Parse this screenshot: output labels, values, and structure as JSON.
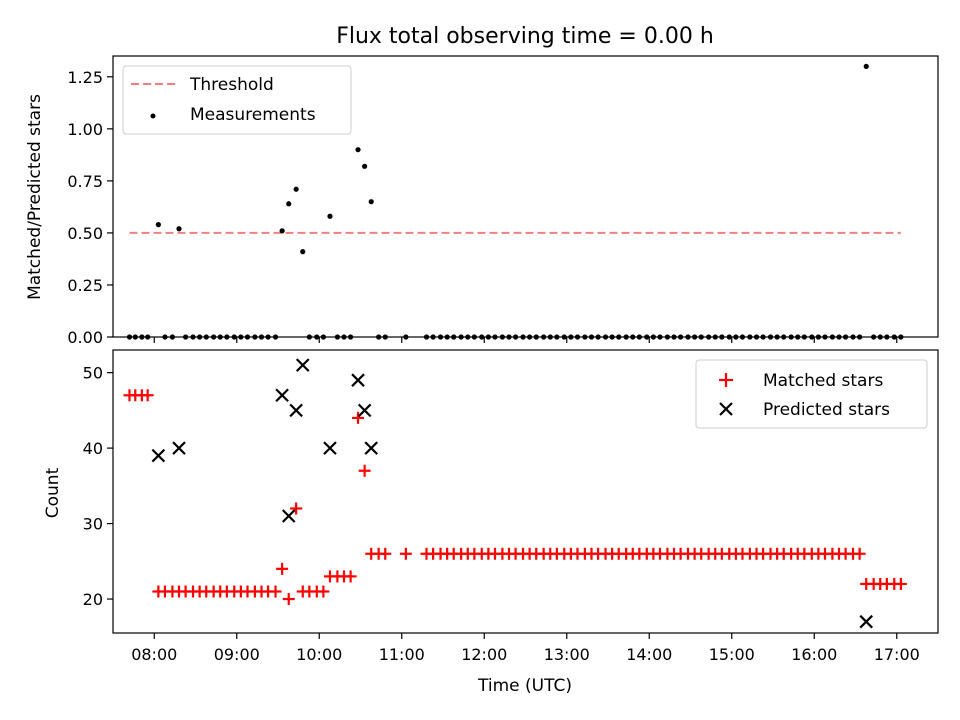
{
  "chart_data": [
    {
      "type": "scatter",
      "title": "Flux total observing time = 0.00 h",
      "xlabel": "",
      "ylabel": "Matched/Predicted stars",
      "xlim_hours": [
        7.5,
        17.5
      ],
      "ylim": [
        0,
        1.35
      ],
      "yticks": [
        "0.00",
        "0.25",
        "0.50",
        "0.75",
        "1.00",
        "1.25"
      ],
      "ytick_values": [
        0,
        0.25,
        0.5,
        0.75,
        1.0,
        1.25
      ],
      "threshold": {
        "label": "Threshold",
        "value": 0.5,
        "x_start": 7.7,
        "x_end": 17.05,
        "color": "#f08080"
      },
      "legend": [
        "Threshold",
        "Measurements"
      ],
      "legend_position": "top-left",
      "series": [
        {
          "name": "Measurements",
          "color": "#000000",
          "points": [
            [
              7.7,
              0
            ],
            [
              7.77,
              0
            ],
            [
              7.85,
              0
            ],
            [
              7.92,
              0
            ],
            [
              8.05,
              0.54
            ],
            [
              8.13,
              0
            ],
            [
              8.22,
              0
            ],
            [
              8.3,
              0.52
            ],
            [
              8.38,
              0
            ],
            [
              8.47,
              0
            ],
            [
              8.55,
              0
            ],
            [
              8.63,
              0
            ],
            [
              8.72,
              0
            ],
            [
              8.8,
              0
            ],
            [
              8.88,
              0
            ],
            [
              8.97,
              0
            ],
            [
              9.05,
              0
            ],
            [
              9.13,
              0
            ],
            [
              9.22,
              0
            ],
            [
              9.3,
              0
            ],
            [
              9.38,
              0
            ],
            [
              9.47,
              0
            ],
            [
              9.55,
              0.51
            ],
            [
              9.63,
              0.64
            ],
            [
              9.72,
              0.71
            ],
            [
              9.8,
              0.41
            ],
            [
              9.88,
              0
            ],
            [
              9.97,
              0
            ],
            [
              10.05,
              0
            ],
            [
              10.13,
              0.58
            ],
            [
              10.22,
              0
            ],
            [
              10.3,
              0
            ],
            [
              10.38,
              0
            ],
            [
              10.47,
              0.9
            ],
            [
              10.55,
              0.82
            ],
            [
              10.63,
              0.65
            ],
            [
              10.72,
              0
            ],
            [
              10.8,
              0
            ],
            [
              11.05,
              0
            ],
            [
              11.3,
              0
            ],
            [
              11.38,
              0
            ],
            [
              11.47,
              0
            ],
            [
              11.55,
              0
            ],
            [
              11.63,
              0
            ],
            [
              11.72,
              0
            ],
            [
              11.8,
              0
            ],
            [
              11.88,
              0
            ],
            [
              11.97,
              0
            ],
            [
              12.05,
              0
            ],
            [
              12.13,
              0
            ],
            [
              12.22,
              0
            ],
            [
              12.3,
              0
            ],
            [
              12.38,
              0
            ],
            [
              12.47,
              0
            ],
            [
              12.55,
              0
            ],
            [
              12.63,
              0
            ],
            [
              12.72,
              0
            ],
            [
              12.8,
              0
            ],
            [
              12.88,
              0
            ],
            [
              12.97,
              0
            ],
            [
              13.05,
              0
            ],
            [
              13.13,
              0
            ],
            [
              13.22,
              0
            ],
            [
              13.3,
              0
            ],
            [
              13.38,
              0
            ],
            [
              13.47,
              0
            ],
            [
              13.55,
              0
            ],
            [
              13.63,
              0
            ],
            [
              13.72,
              0
            ],
            [
              13.8,
              0
            ],
            [
              13.88,
              0
            ],
            [
              13.97,
              0
            ],
            [
              14.05,
              0
            ],
            [
              14.13,
              0
            ],
            [
              14.22,
              0
            ],
            [
              14.3,
              0
            ],
            [
              14.38,
              0
            ],
            [
              14.47,
              0
            ],
            [
              14.55,
              0
            ],
            [
              14.63,
              0
            ],
            [
              14.72,
              0
            ],
            [
              14.8,
              0
            ],
            [
              14.88,
              0
            ],
            [
              14.97,
              0
            ],
            [
              15.05,
              0
            ],
            [
              15.13,
              0
            ],
            [
              15.22,
              0
            ],
            [
              15.3,
              0
            ],
            [
              15.38,
              0
            ],
            [
              15.47,
              0
            ],
            [
              15.55,
              0
            ],
            [
              15.63,
              0
            ],
            [
              15.72,
              0
            ],
            [
              15.8,
              0
            ],
            [
              15.88,
              0
            ],
            [
              15.97,
              0
            ],
            [
              16.05,
              0
            ],
            [
              16.13,
              0
            ],
            [
              16.22,
              0
            ],
            [
              16.3,
              0
            ],
            [
              16.38,
              0
            ],
            [
              16.47,
              0
            ],
            [
              16.55,
              0
            ],
            [
              16.63,
              1.3
            ],
            [
              16.72,
              0
            ],
            [
              16.8,
              0
            ],
            [
              16.88,
              0
            ],
            [
              16.97,
              0
            ],
            [
              17.05,
              0
            ]
          ]
        }
      ]
    },
    {
      "type": "scatter",
      "title": "",
      "xlabel": "Time (UTC)",
      "ylabel": "Count",
      "xlim_hours": [
        7.5,
        17.5
      ],
      "ylim": [
        15.5,
        53
      ],
      "yticks": [
        "20",
        "30",
        "40",
        "50"
      ],
      "ytick_values": [
        20,
        30,
        40,
        50
      ],
      "xticks": [
        "08:00",
        "09:00",
        "10:00",
        "11:00",
        "12:00",
        "13:00",
        "14:00",
        "15:00",
        "16:00",
        "17:00"
      ],
      "xtick_values": [
        8,
        9,
        10,
        11,
        12,
        13,
        14,
        15,
        16,
        17
      ],
      "legend": [
        "Matched stars",
        "Predicted stars"
      ],
      "legend_position": "top-right",
      "series": [
        {
          "name": "Matched stars",
          "marker": "plus",
          "color": "#ff0000",
          "points": [
            [
              7.7,
              47
            ],
            [
              7.77,
              47
            ],
            [
              7.85,
              47
            ],
            [
              7.92,
              47
            ],
            [
              8.05,
              21
            ],
            [
              8.13,
              21
            ],
            [
              8.22,
              21
            ],
            [
              8.3,
              21
            ],
            [
              8.38,
              21
            ],
            [
              8.47,
              21
            ],
            [
              8.55,
              21
            ],
            [
              8.63,
              21
            ],
            [
              8.72,
              21
            ],
            [
              8.8,
              21
            ],
            [
              8.88,
              21
            ],
            [
              8.97,
              21
            ],
            [
              9.05,
              21
            ],
            [
              9.13,
              21
            ],
            [
              9.22,
              21
            ],
            [
              9.3,
              21
            ],
            [
              9.38,
              21
            ],
            [
              9.47,
              21
            ],
            [
              9.55,
              24
            ],
            [
              9.63,
              20
            ],
            [
              9.72,
              32
            ],
            [
              9.8,
              21
            ],
            [
              9.88,
              21
            ],
            [
              9.97,
              21
            ],
            [
              10.05,
              21
            ],
            [
              10.13,
              23
            ],
            [
              10.22,
              23
            ],
            [
              10.3,
              23
            ],
            [
              10.38,
              23
            ],
            [
              10.47,
              44
            ],
            [
              10.55,
              37
            ],
            [
              10.63,
              26
            ],
            [
              10.72,
              26
            ],
            [
              10.8,
              26
            ],
            [
              11.05,
              26
            ],
            [
              11.3,
              26
            ],
            [
              11.38,
              26
            ],
            [
              11.47,
              26
            ],
            [
              11.55,
              26
            ],
            [
              11.63,
              26
            ],
            [
              11.72,
              26
            ],
            [
              11.8,
              26
            ],
            [
              11.88,
              26
            ],
            [
              11.97,
              26
            ],
            [
              12.05,
              26
            ],
            [
              12.13,
              26
            ],
            [
              12.22,
              26
            ],
            [
              12.3,
              26
            ],
            [
              12.38,
              26
            ],
            [
              12.47,
              26
            ],
            [
              12.55,
              26
            ],
            [
              12.63,
              26
            ],
            [
              12.72,
              26
            ],
            [
              12.8,
              26
            ],
            [
              12.88,
              26
            ],
            [
              12.97,
              26
            ],
            [
              13.05,
              26
            ],
            [
              13.13,
              26
            ],
            [
              13.22,
              26
            ],
            [
              13.3,
              26
            ],
            [
              13.38,
              26
            ],
            [
              13.47,
              26
            ],
            [
              13.55,
              26
            ],
            [
              13.63,
              26
            ],
            [
              13.72,
              26
            ],
            [
              13.8,
              26
            ],
            [
              13.88,
              26
            ],
            [
              13.97,
              26
            ],
            [
              14.05,
              26
            ],
            [
              14.13,
              26
            ],
            [
              14.22,
              26
            ],
            [
              14.3,
              26
            ],
            [
              14.38,
              26
            ],
            [
              14.47,
              26
            ],
            [
              14.55,
              26
            ],
            [
              14.63,
              26
            ],
            [
              14.72,
              26
            ],
            [
              14.8,
              26
            ],
            [
              14.88,
              26
            ],
            [
              14.97,
              26
            ],
            [
              15.05,
              26
            ],
            [
              15.13,
              26
            ],
            [
              15.22,
              26
            ],
            [
              15.3,
              26
            ],
            [
              15.38,
              26
            ],
            [
              15.47,
              26
            ],
            [
              15.55,
              26
            ],
            [
              15.63,
              26
            ],
            [
              15.72,
              26
            ],
            [
              15.8,
              26
            ],
            [
              15.88,
              26
            ],
            [
              15.97,
              26
            ],
            [
              16.05,
              26
            ],
            [
              16.13,
              26
            ],
            [
              16.22,
              26
            ],
            [
              16.3,
              26
            ],
            [
              16.38,
              26
            ],
            [
              16.47,
              26
            ],
            [
              16.55,
              26
            ],
            [
              16.63,
              22
            ],
            [
              16.72,
              22
            ],
            [
              16.8,
              22
            ],
            [
              16.88,
              22
            ],
            [
              16.97,
              22
            ],
            [
              17.05,
              22
            ]
          ]
        },
        {
          "name": "Predicted stars",
          "marker": "x",
          "color": "#000000",
          "points": [
            [
              8.05,
              39
            ],
            [
              8.3,
              40
            ],
            [
              9.55,
              47
            ],
            [
              9.63,
              31
            ],
            [
              9.72,
              45
            ],
            [
              9.8,
              51
            ],
            [
              10.13,
              40
            ],
            [
              10.47,
              49
            ],
            [
              10.55,
              45
            ],
            [
              10.63,
              40
            ],
            [
              16.63,
              17
            ]
          ]
        }
      ]
    }
  ]
}
